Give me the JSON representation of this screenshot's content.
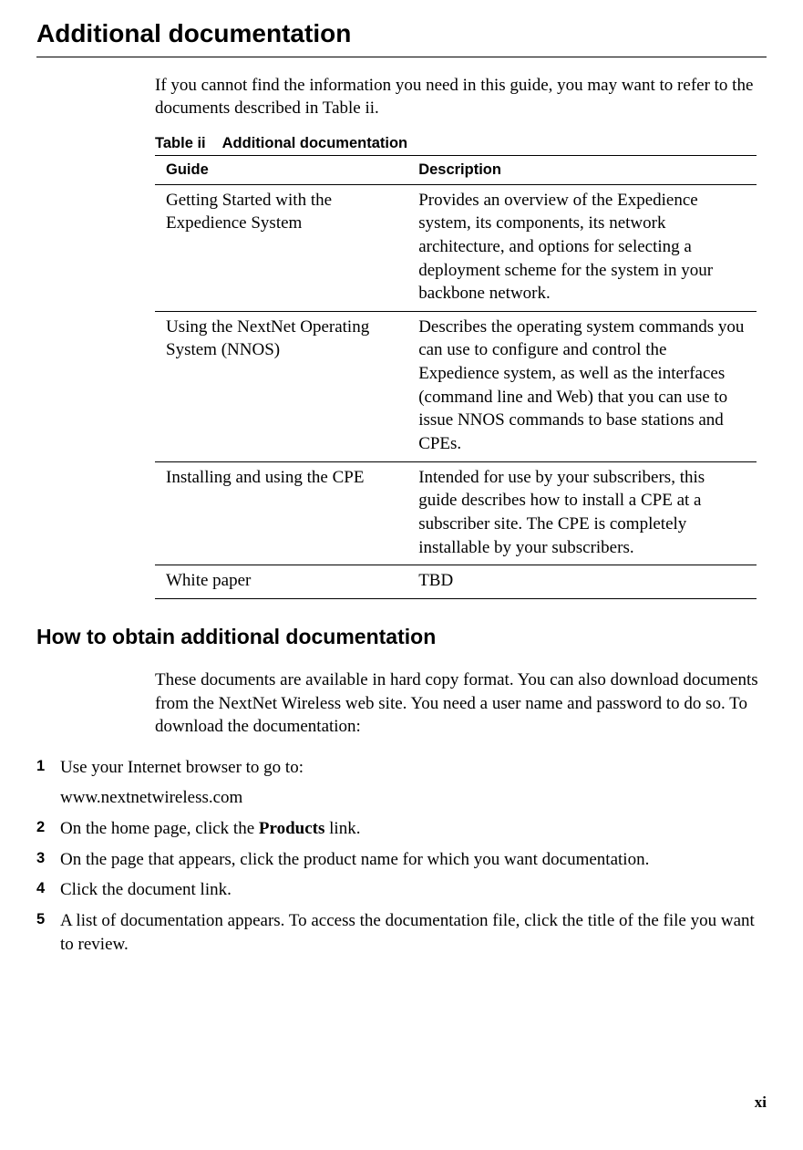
{
  "heading1": "Additional documentation",
  "intro": "If you cannot find the information you need in this guide, you may want to refer to the documents described in Table ii.",
  "table": {
    "caption_label": "Table ii",
    "caption_title": "Additional documentation",
    "columns": [
      "Guide",
      "Description"
    ],
    "rows": [
      [
        "Getting Started with the Expedience System",
        "Provides an overview of the Expedience system, its components, its network architecture, and options for selecting a deployment scheme for the system in your backbone network."
      ],
      [
        "Using the NextNet Operating System (NNOS)",
        "Describes the operating system commands you can use to configure and control the Expedience system, as well as the interfaces (command line and Web) that you can use to issue NNOS commands to base stations and CPEs."
      ],
      [
        "Installing and using the CPE",
        "Intended for use by your subscribers, this guide describes how to install a CPE at a subscriber site. The CPE is completely installable by your subscribers."
      ],
      [
        "White paper",
        "TBD"
      ]
    ]
  },
  "heading2": "How to obtain additional documentation",
  "para2": "These documents are available in hard copy format. You can also download documents from the NextNet Wireless web site. You need a user name and password to do so. To download the documentation:",
  "steps": {
    "s1a": "Use your Internet browser to go to:",
    "s1b": "www.nextnetwireless.com",
    "s2_pre": "On the home page, click the ",
    "s2_bold": "Products",
    "s2_post": " link.",
    "s3": "On the page that appears, click the product name for which you want documentation.",
    "s4": "Click the document link.",
    "s5": "A list of documentation appears. To access the documentation file, click the title of the file you want to review."
  },
  "page_num": "xi"
}
